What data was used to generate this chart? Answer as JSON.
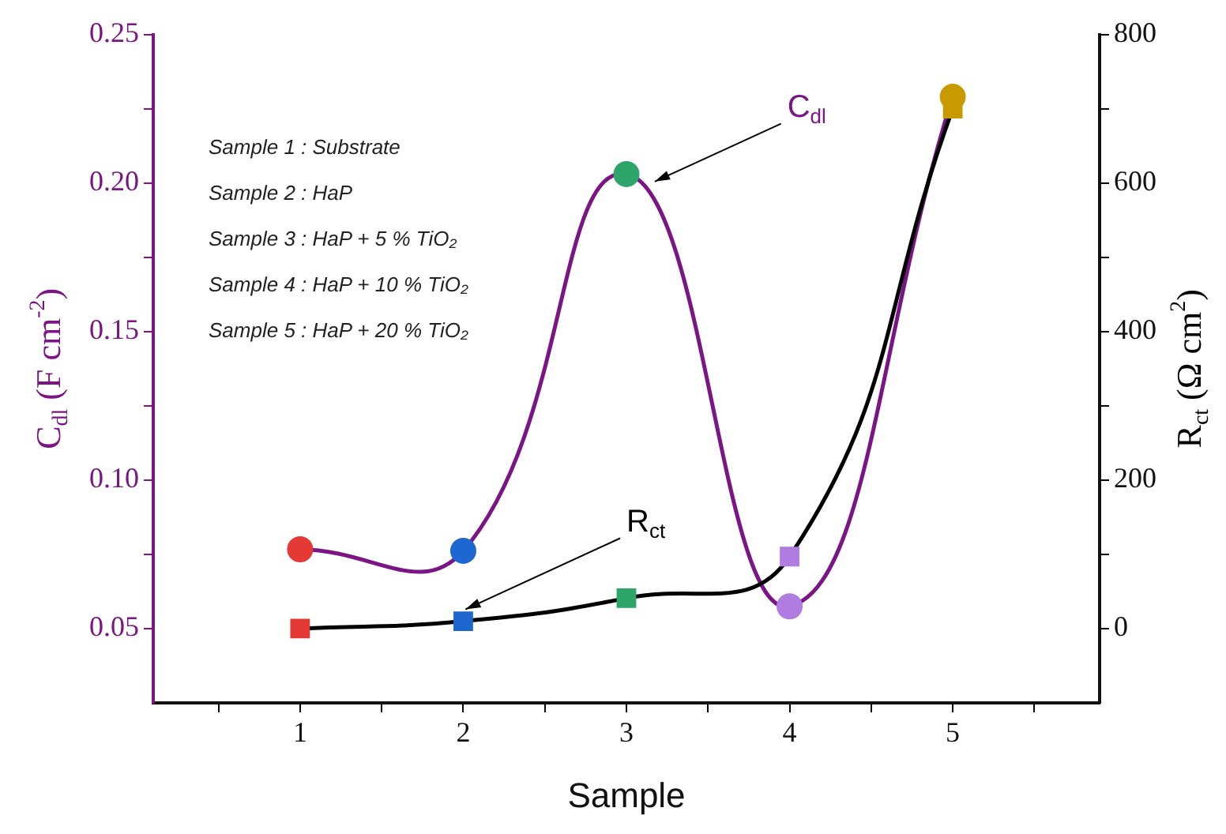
{
  "chart_data": {
    "type": "line",
    "xlabel": "Sample",
    "ylabel": "C$_{dl}$ (F cm$^{-2}$)",
    "y2label": "R$_{ct}$ (Ω cm$^{2}$)",
    "x": [
      1,
      2,
      3,
      4,
      5
    ],
    "series": [
      {
        "name": "C$_{dl}$",
        "type": "line",
        "color": "#7b1585",
        "marker": "circle",
        "colors": [
          "#e53935",
          "#1e66d0",
          "#2ea56a",
          "#b07ce0",
          "#c99a00"
        ],
        "values": [
          0.0767,
          0.0762,
          0.203,
          0.0575,
          0.229
        ]
      },
      {
        "name": "R$_{ct}$",
        "type": "line",
        "color": "#000000",
        "marker": "square",
        "axis": "y2",
        "colors": [
          "#e53935",
          "#1e66d0",
          "#2ea56a",
          "#b07ce0",
          "#c99a00"
        ],
        "values": [
          0,
          10,
          41,
          97,
          700
        ]
      }
    ],
    "xlim": [
      0.1,
      5.9
    ],
    "xticks": [
      {
        "value": 0.5,
        "label": null
      },
      1,
      {
        "value": 1.5,
        "label": null
      },
      2,
      {
        "value": 2.5,
        "label": null
      },
      3,
      {
        "value": 3.5,
        "label": null
      },
      4,
      {
        "value": 4.5,
        "label": null
      },
      5,
      {
        "value": 5.5,
        "label": null
      }
    ],
    "ylim": [
      0.025,
      0.25
    ],
    "yticks": [
      {
        "value": 0.05,
        "label": "0.05"
      },
      {
        "value": 0.075,
        "label": null
      },
      {
        "value": 0.1,
        "label": "0.10"
      },
      {
        "value": 0.125,
        "label": null
      },
      {
        "value": 0.15,
        "label": "0.15"
      },
      {
        "value": 0.175,
        "label": null
      },
      {
        "value": 0.2,
        "label": "0.20"
      },
      {
        "value": 0.225,
        "label": null
      },
      {
        "value": 0.25,
        "label": "0.25"
      }
    ],
    "y2lim": [
      -100,
      800
    ],
    "y2ticks": [
      0,
      {
        "value": 100,
        "label": null
      },
      200,
      {
        "value": 300,
        "label": null
      },
      400,
      {
        "value": 500,
        "label": null
      },
      600,
      {
        "value": 700,
        "label": null
      },
      800
    ],
    "grid": false,
    "legend": false,
    "annotations": [
      "Sample 1 : Substrate",
      "Sample 2 : HaP",
      "Sample 3 : HaP + 5 % TiO₂",
      "Sample 4 : HaP + 10 % TiO₂",
      "Sample 5 : HaP + 20 % TiO₂"
    ]
  }
}
